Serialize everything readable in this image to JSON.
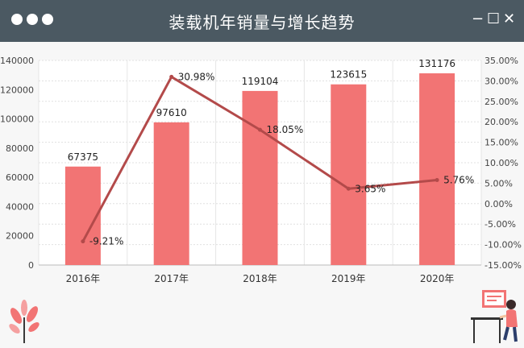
{
  "window": {
    "title": "装载机年销量与增长趋势",
    "controls": {
      "minimize": "−",
      "maximize": "☐",
      "close": "✕"
    }
  },
  "colors": {
    "bar": "#f27474",
    "line": "#b34a4a",
    "titlebar": "#4b5962"
  },
  "chart_data": {
    "type": "bar",
    "categories": [
      "2016年",
      "2017年",
      "2018年",
      "2019年",
      "2020年"
    ],
    "series": [
      {
        "type": "bar",
        "axis": "left",
        "values": [
          67375,
          97610,
          119104,
          123615,
          131176
        ]
      },
      {
        "type": "line",
        "axis": "right",
        "values": [
          -9.21,
          30.98,
          18.05,
          3.65,
          5.76
        ]
      }
    ],
    "bar_labels": [
      "67375",
      "97610",
      "119104",
      "123615",
      "131176"
    ],
    "line_labels": [
      "-9.21%",
      "30.98%",
      "18.05%",
      "3.65%",
      "5.76%"
    ],
    "ylim_left": [
      0,
      140000
    ],
    "ylim_right": [
      -15,
      35
    ],
    "left_ticks": [
      "0",
      "20000",
      "40000",
      "60000",
      "80000",
      "100000",
      "120000",
      "140000"
    ],
    "right_ticks": [
      "-15.00%",
      "-10.00%",
      "-5.00%",
      "0.00%",
      "5.00%",
      "10.00%",
      "15.00%",
      "20.00%",
      "25.00%",
      "30.00%",
      "35.00%"
    ],
    "grid": true
  }
}
